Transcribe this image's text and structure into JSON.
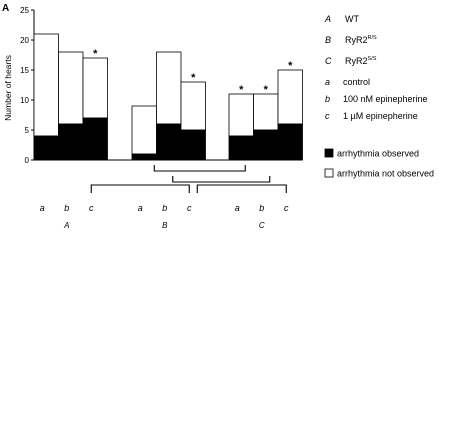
{
  "panel_label": "A",
  "chart_data": {
    "type": "bar",
    "stacked": true,
    "ylabel": "Number of hearts",
    "ylim": [
      0,
      25
    ],
    "yticks": [
      0,
      5,
      10,
      15,
      20,
      25
    ],
    "grid": false,
    "groups": [
      {
        "name": "A",
        "bars": [
          {
            "label": "a",
            "observed": 4,
            "not_observed": 17,
            "significant": false
          },
          {
            "label": "b",
            "observed": 6,
            "not_observed": 12,
            "significant": false
          },
          {
            "label": "c",
            "observed": 7,
            "not_observed": 10,
            "significant": true
          }
        ]
      },
      {
        "name": "B",
        "bars": [
          {
            "label": "a",
            "observed": 1,
            "not_observed": 8,
            "significant": false
          },
          {
            "label": "b",
            "observed": 6,
            "not_observed": 12,
            "significant": false
          },
          {
            "label": "c",
            "observed": 5,
            "not_observed": 8,
            "significant": true
          }
        ]
      },
      {
        "name": "C",
        "bars": [
          {
            "label": "a",
            "observed": 4,
            "not_observed": 7,
            "significant": true
          },
          {
            "label": "b",
            "observed": 5,
            "not_observed": 6,
            "significant": true
          },
          {
            "label": "c",
            "observed": 6,
            "not_observed": 9,
            "significant": true
          }
        ]
      }
    ],
    "significance_marker": "*",
    "legend": {
      "placement": "right",
      "groups": [
        {
          "key": "A",
          "text": "WT",
          "sup": ""
        },
        {
          "key": "B",
          "text": "RyR2",
          "sup": "R/S"
        },
        {
          "key": "C",
          "text": "RyR2",
          "sup": "S/S"
        }
      ],
      "conditions": [
        {
          "key": "a",
          "text": "control"
        },
        {
          "key": "b",
          "text": "100 nM epinepherine"
        },
        {
          "key": "c",
          "text": "1 µM epinepherine"
        }
      ],
      "series": [
        {
          "name": "arrhythmia observed",
          "color": "#000000"
        },
        {
          "name": "arrhythmia not observed",
          "color": "#ffffff"
        }
      ]
    }
  }
}
